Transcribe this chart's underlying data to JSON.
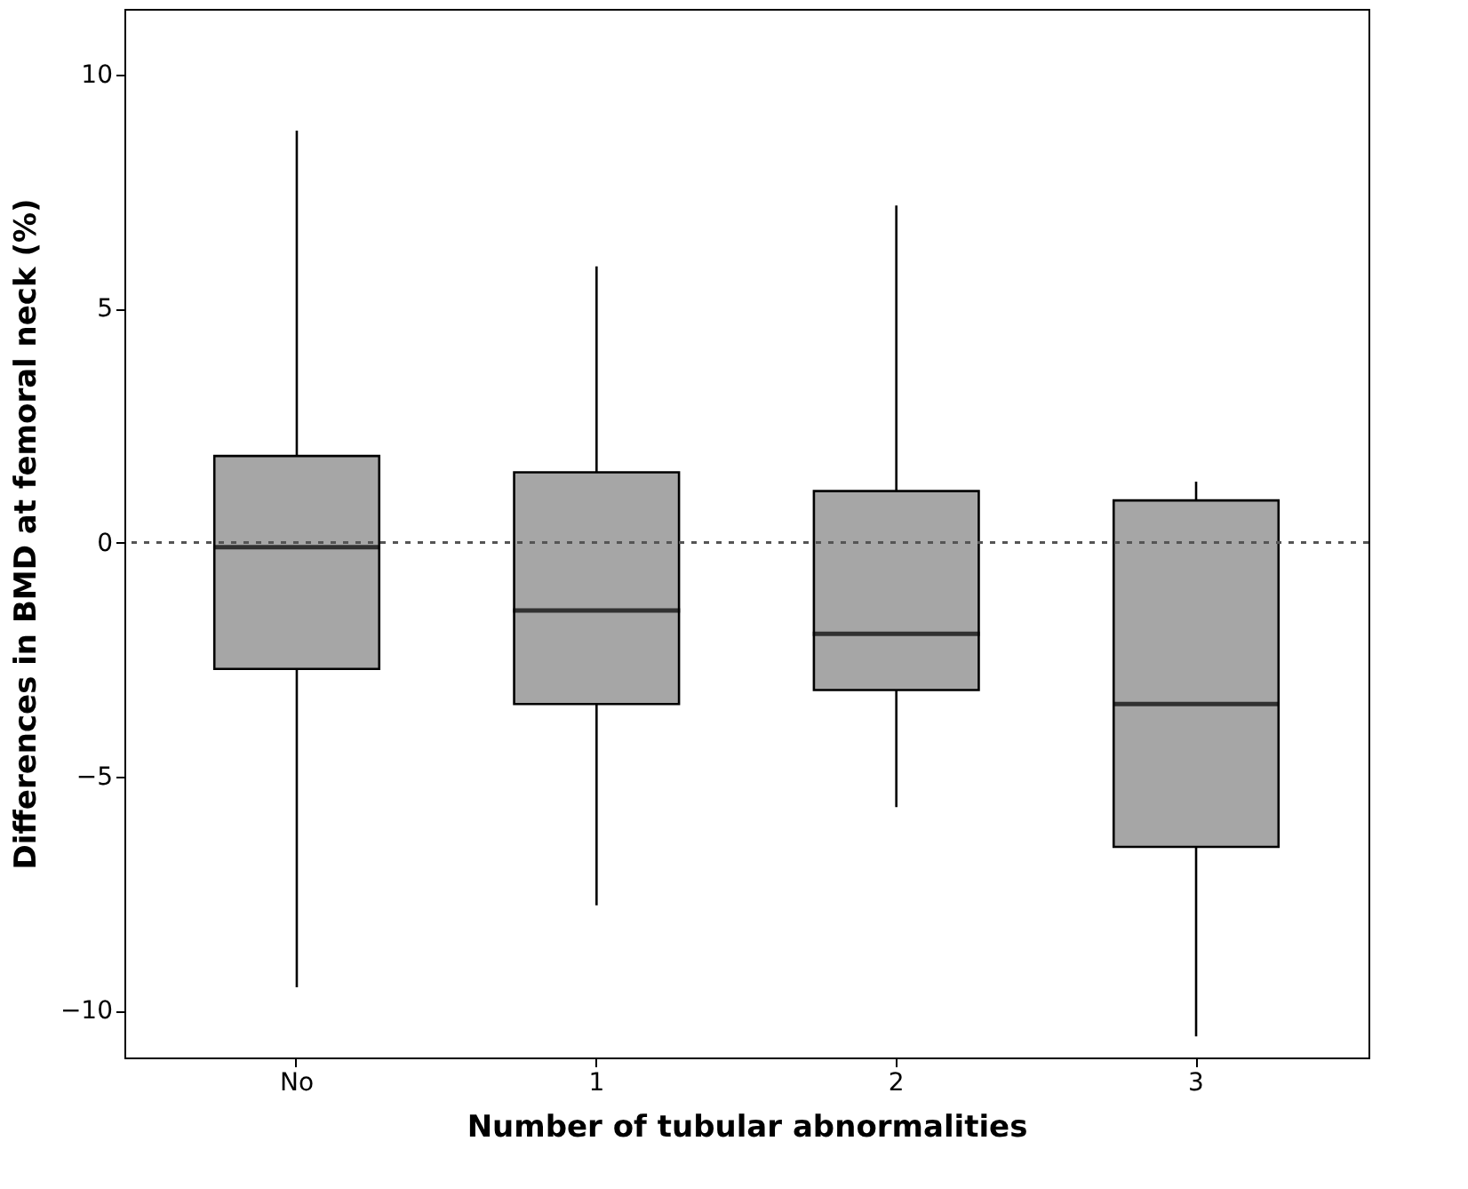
{
  "chart_data": {
    "type": "box",
    "xlabel": "Number of tubular abnormalities",
    "ylabel": "Differences in BMD at femoral neck (%)",
    "categories": [
      "No",
      "1",
      "2",
      "3"
    ],
    "boxes": [
      {
        "low": -9.5,
        "q1": -2.7,
        "median": -0.1,
        "q3": 1.85,
        "high": 8.8
      },
      {
        "low": -7.75,
        "q1": -3.45,
        "median": -1.45,
        "q3": 1.5,
        "high": 5.9
      },
      {
        "low": -5.65,
        "q1": -3.15,
        "median": -1.95,
        "q3": 1.1,
        "high": 7.2
      },
      {
        "low": -10.55,
        "q1": -6.5,
        "median": -3.45,
        "q3": 0.9,
        "high": 1.3
      }
    ],
    "color": "#a6a6a6",
    "ylim": [
      -11,
      11.4
    ],
    "yticks": [
      -10,
      -5,
      0,
      5,
      10
    ],
    "grid": false,
    "ref_lines": [
      {
        "axis": "y",
        "value": 0,
        "line_style": "dotted",
        "color": "#555555"
      }
    ]
  }
}
